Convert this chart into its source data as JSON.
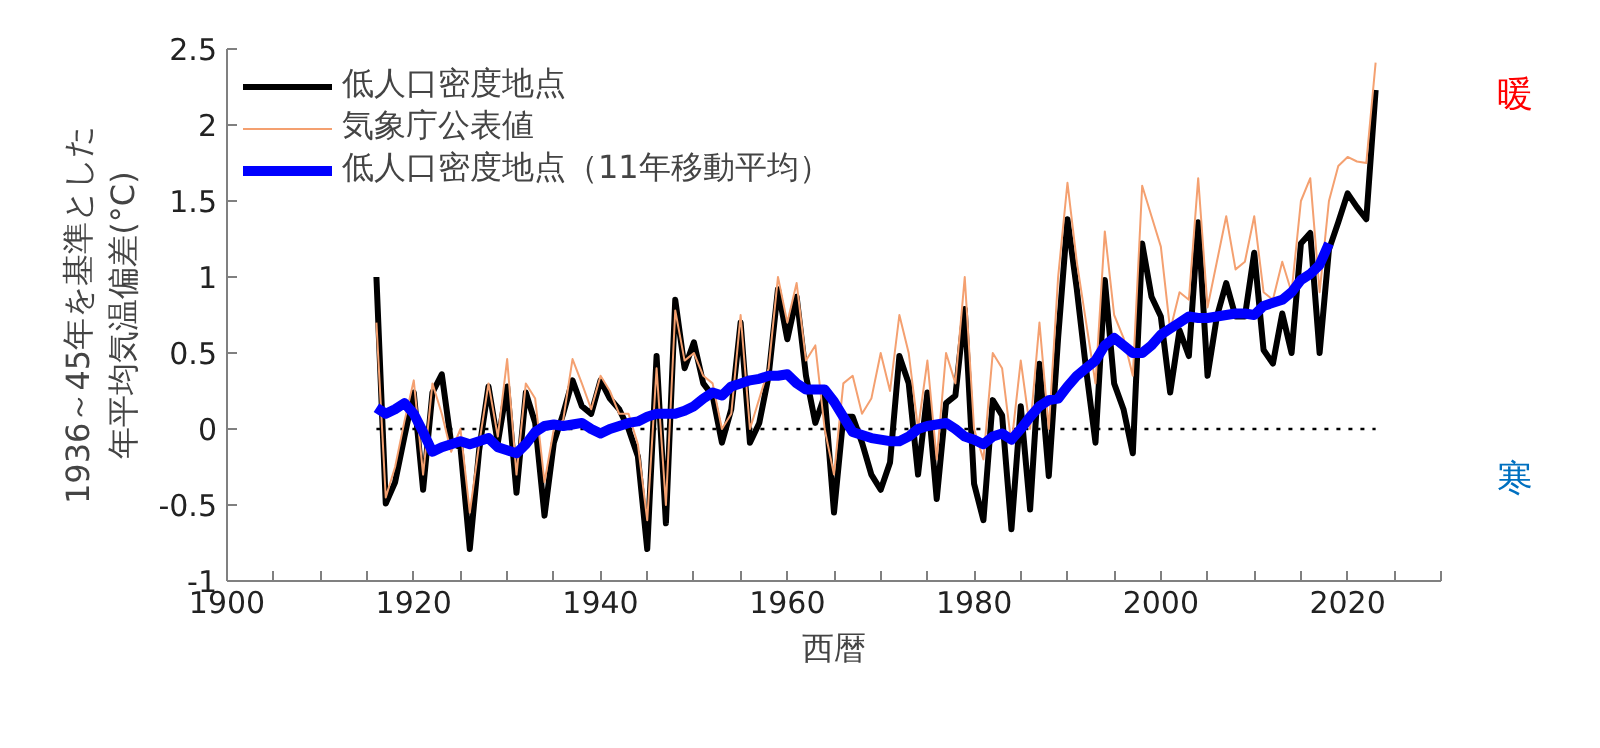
{
  "chart_data": {
    "type": "line",
    "xlabel": "西暦",
    "ylabel": "1936～45年を基準とした年平均気温偏差(°C)",
    "xlim": [
      1900,
      2030
    ],
    "xticks": [
      1900,
      {
        "value": 1905,
        "label": null
      },
      {
        "value": 1910,
        "label": null
      },
      {
        "value": 1915,
        "label": null
      },
      1920,
      {
        "value": 1925,
        "label": null
      },
      {
        "value": 1930,
        "label": null
      },
      {
        "value": 1935,
        "label": null
      },
      1940,
      {
        "value": 1945,
        "label": null
      },
      {
        "value": 1950,
        "label": null
      },
      {
        "value": 1955,
        "label": null
      },
      1960,
      {
        "value": 1965,
        "label": null
      },
      {
        "value": 1970,
        "label": null
      },
      {
        "value": 1975,
        "label": null
      },
      1980,
      {
        "value": 1985,
        "label": null
      },
      {
        "value": 1990,
        "label": null
      },
      {
        "value": 1995,
        "label": null
      },
      2000,
      {
        "value": 2005,
        "label": null
      },
      {
        "value": 2010,
        "label": null
      },
      {
        "value": 2015,
        "label": null
      },
      2020,
      {
        "value": 2025,
        "label": null
      },
      {
        "value": 2030,
        "label": null
      }
    ],
    "ylim": [
      -1,
      2.5
    ],
    "yticks": [
      -1,
      -0.5,
      0,
      0.5,
      1,
      1.5,
      2,
      2.5
    ],
    "grid": false,
    "legend": "top left",
    "ref_lines": [
      {
        "axis": "y",
        "value": 0,
        "color": "#000000",
        "line_style": "dotted"
      }
    ],
    "annotations": [
      "暖",
      "寒"
    ],
    "series": [
      {
        "name": "低人口密度地点",
        "color": "#000000",
        "x": [
          1916,
          1917,
          1918,
          1919,
          1920,
          1921,
          1922,
          1923,
          1924,
          1925,
          1926,
          1927,
          1928,
          1929,
          1930,
          1931,
          1932,
          1933,
          1934,
          1935,
          1936,
          1937,
          1938,
          1939,
          1940,
          1941,
          1942,
          1943,
          1944,
          1945,
          1946,
          1947,
          1948,
          1949,
          1950,
          1951,
          1952,
          1953,
          1954,
          1955,
          1956,
          1957,
          1958,
          1959,
          1960,
          1961,
          1962,
          1963,
          1964,
          1965,
          1966,
          1967,
          1968,
          1969,
          1970,
          1971,
          1972,
          1973,
          1974,
          1975,
          1976,
          1977,
          1978,
          1979,
          1980,
          1981,
          1982,
          1983,
          1984,
          1985,
          1986,
          1987,
          1988,
          1989,
          1990,
          1991,
          1992,
          1993,
          1994,
          1995,
          1996,
          1997,
          1998,
          1999,
          2000,
          2001,
          2002,
          2003,
          2004,
          2005,
          2006,
          2007,
          2008,
          2009,
          2010,
          2011,
          2012,
          2013,
          2014,
          2015,
          2016,
          2017,
          2018,
          2019,
          2020,
          2021,
          2022,
          2023
        ],
        "values": [
          1.0,
          -0.49,
          -0.35,
          -0.05,
          0.24,
          -0.4,
          0.24,
          0.36,
          -0.09,
          -0.12,
          -0.79,
          -0.14,
          0.28,
          -0.09,
          0.28,
          -0.42,
          0.24,
          0.04,
          -0.57,
          -0.09,
          0.1,
          0.32,
          0.15,
          0.1,
          0.32,
          0.2,
          0.13,
          0.0,
          -0.18,
          -0.79,
          0.48,
          -0.62,
          0.85,
          0.4,
          0.57,
          0.3,
          0.22,
          -0.09,
          0.13,
          0.7,
          -0.09,
          0.04,
          0.35,
          0.92,
          0.59,
          0.87,
          0.35,
          0.04,
          0.22,
          -0.55,
          0.08,
          0.08,
          -0.09,
          -0.3,
          -0.4,
          -0.22,
          0.48,
          0.3,
          -0.3,
          0.24,
          -0.46,
          0.17,
          0.22,
          0.79,
          -0.36,
          -0.6,
          0.19,
          0.09,
          -0.66,
          0.15,
          -0.53,
          0.43,
          -0.31,
          0.6,
          1.38,
          0.92,
          0.39,
          -0.09,
          0.98,
          0.3,
          0.13,
          -0.16,
          1.22,
          0.87,
          0.74,
          0.24,
          0.65,
          0.48,
          1.36,
          0.35,
          0.74,
          0.96,
          0.74,
          0.74,
          1.16,
          0.52,
          0.43,
          0.76,
          0.5,
          1.22,
          1.29,
          0.5,
          1.18,
          1.36,
          1.55,
          1.46,
          1.38,
          2.23
        ]
      },
      {
        "name": "気象庁公表値",
        "color": "#f4a070",
        "x": [
          1916,
          1917,
          1918,
          1919,
          1920,
          1921,
          1922,
          1923,
          1924,
          1925,
          1926,
          1927,
          1928,
          1929,
          1930,
          1931,
          1932,
          1933,
          1934,
          1935,
          1936,
          1937,
          1938,
          1939,
          1940,
          1941,
          1942,
          1943,
          1944,
          1945,
          1946,
          1947,
          1948,
          1949,
          1950,
          1951,
          1952,
          1953,
          1954,
          1955,
          1956,
          1957,
          1958,
          1959,
          1960,
          1961,
          1962,
          1963,
          1964,
          1965,
          1966,
          1967,
          1968,
          1969,
          1970,
          1971,
          1972,
          1973,
          1974,
          1975,
          1976,
          1977,
          1978,
          1979,
          1980,
          1981,
          1982,
          1983,
          1984,
          1985,
          1986,
          1987,
          1988,
          1989,
          1990,
          1991,
          1992,
          1993,
          1994,
          1995,
          1996,
          1997,
          1998,
          1999,
          2000,
          2001,
          2002,
          2003,
          2004,
          2005,
          2006,
          2007,
          2008,
          2009,
          2010,
          2011,
          2012,
          2013,
          2014,
          2015,
          2016,
          2017,
          2018,
          2019,
          2020,
          2021,
          2022,
          2023
        ],
        "values": [
          0.7,
          -0.45,
          -0.25,
          0.05,
          0.32,
          -0.3,
          0.3,
          0.1,
          -0.15,
          0.0,
          -0.55,
          -0.1,
          0.3,
          -0.05,
          0.46,
          -0.3,
          0.3,
          0.2,
          -0.35,
          0.0,
          0.06,
          0.46,
          0.3,
          0.13,
          0.35,
          0.25,
          0.1,
          0.1,
          -0.1,
          -0.6,
          0.4,
          -0.5,
          0.78,
          0.45,
          0.5,
          0.35,
          0.3,
          0.0,
          0.1,
          0.75,
          0.0,
          0.2,
          0.4,
          1.0,
          0.7,
          0.96,
          0.45,
          0.55,
          null,
          -0.3,
          0.3,
          0.35,
          0.1,
          0.2,
          0.5,
          0.25,
          0.75,
          0.5,
          0.0,
          0.45,
          -0.2,
          0.5,
          0.3,
          1.0,
          0.0,
          -0.2,
          0.5,
          0.4,
          -0.1,
          0.45,
          0.0,
          0.7,
          0.0,
          1.0,
          1.62,
          1.1,
          0.7,
          0.3,
          1.3,
          0.75,
          0.6,
          0.35,
          1.6,
          1.4,
          1.2,
          0.65,
          0.9,
          0.85,
          1.65,
          0.8,
          1.1,
          1.4,
          1.05,
          1.1,
          1.4,
          0.9,
          0.85,
          1.1,
          0.9,
          1.5,
          1.65,
          0.9,
          1.5,
          1.73,
          1.79,
          1.76,
          1.75,
          2.41
        ]
      },
      {
        "name": "低人口密度地点（11年移動平均）",
        "color": "#0000ff",
        "x": [
          1916,
          1917,
          1918,
          1919,
          1920,
          1921,
          1922,
          1923,
          1924,
          1925,
          1926,
          1927,
          1928,
          1929,
          1930,
          1931,
          1932,
          1933,
          1934,
          1935,
          1936,
          1937,
          1938,
          1939,
          1940,
          1941,
          1942,
          1943,
          1944,
          1945,
          1946,
          1947,
          1948,
          1949,
          1950,
          1951,
          1952,
          1953,
          1954,
          1955,
          1956,
          1957,
          1958,
          1959,
          1960,
          1961,
          1962,
          1963,
          1964,
          1965,
          1966,
          1967,
          1968,
          1969,
          1970,
          1971,
          1972,
          1973,
          1974,
          1975,
          1976,
          1977,
          1978,
          1979,
          1980,
          1981,
          1982,
          1983,
          1984,
          1985,
          1986,
          1987,
          1988,
          1989,
          1990,
          1991,
          1992,
          1993,
          1994,
          1995,
          1996,
          1997,
          1998,
          1999,
          2000,
          2001,
          2002,
          2003,
          2004,
          2005,
          2006,
          2007,
          2008,
          2009,
          2010,
          2011,
          2012,
          2013,
          2014,
          2015,
          2016,
          2017,
          2018
        ],
        "values": [
          0.14,
          0.1,
          0.13,
          0.17,
          0.1,
          -0.02,
          -0.15,
          -0.12,
          -0.1,
          -0.08,
          -0.1,
          -0.08,
          -0.06,
          -0.12,
          -0.14,
          -0.16,
          -0.1,
          -0.02,
          0.02,
          0.03,
          0.02,
          0.03,
          0.04,
          0.0,
          -0.03,
          0.0,
          0.02,
          0.04,
          0.05,
          0.08,
          0.1,
          0.1,
          0.1,
          0.12,
          0.15,
          0.2,
          0.24,
          0.22,
          0.28,
          0.3,
          0.32,
          0.33,
          0.35,
          0.35,
          0.36,
          0.3,
          0.26,
          0.26,
          0.26,
          0.18,
          0.08,
          -0.02,
          -0.04,
          -0.06,
          -0.07,
          -0.08,
          -0.08,
          -0.05,
          0.0,
          0.02,
          0.03,
          0.04,
          0.0,
          -0.05,
          -0.07,
          -0.1,
          -0.05,
          -0.03,
          -0.07,
          0.0,
          0.08,
          0.15,
          0.19,
          0.2,
          0.28,
          0.35,
          0.4,
          0.45,
          0.55,
          0.6,
          0.55,
          0.5,
          0.5,
          0.55,
          0.62,
          0.66,
          0.7,
          0.74,
          0.73,
          0.73,
          0.74,
          0.75,
          0.76,
          0.76,
          0.75,
          0.81,
          0.83,
          0.85,
          0.9,
          0.98,
          1.02,
          1.08,
          1.22
        ]
      }
    ]
  }
}
